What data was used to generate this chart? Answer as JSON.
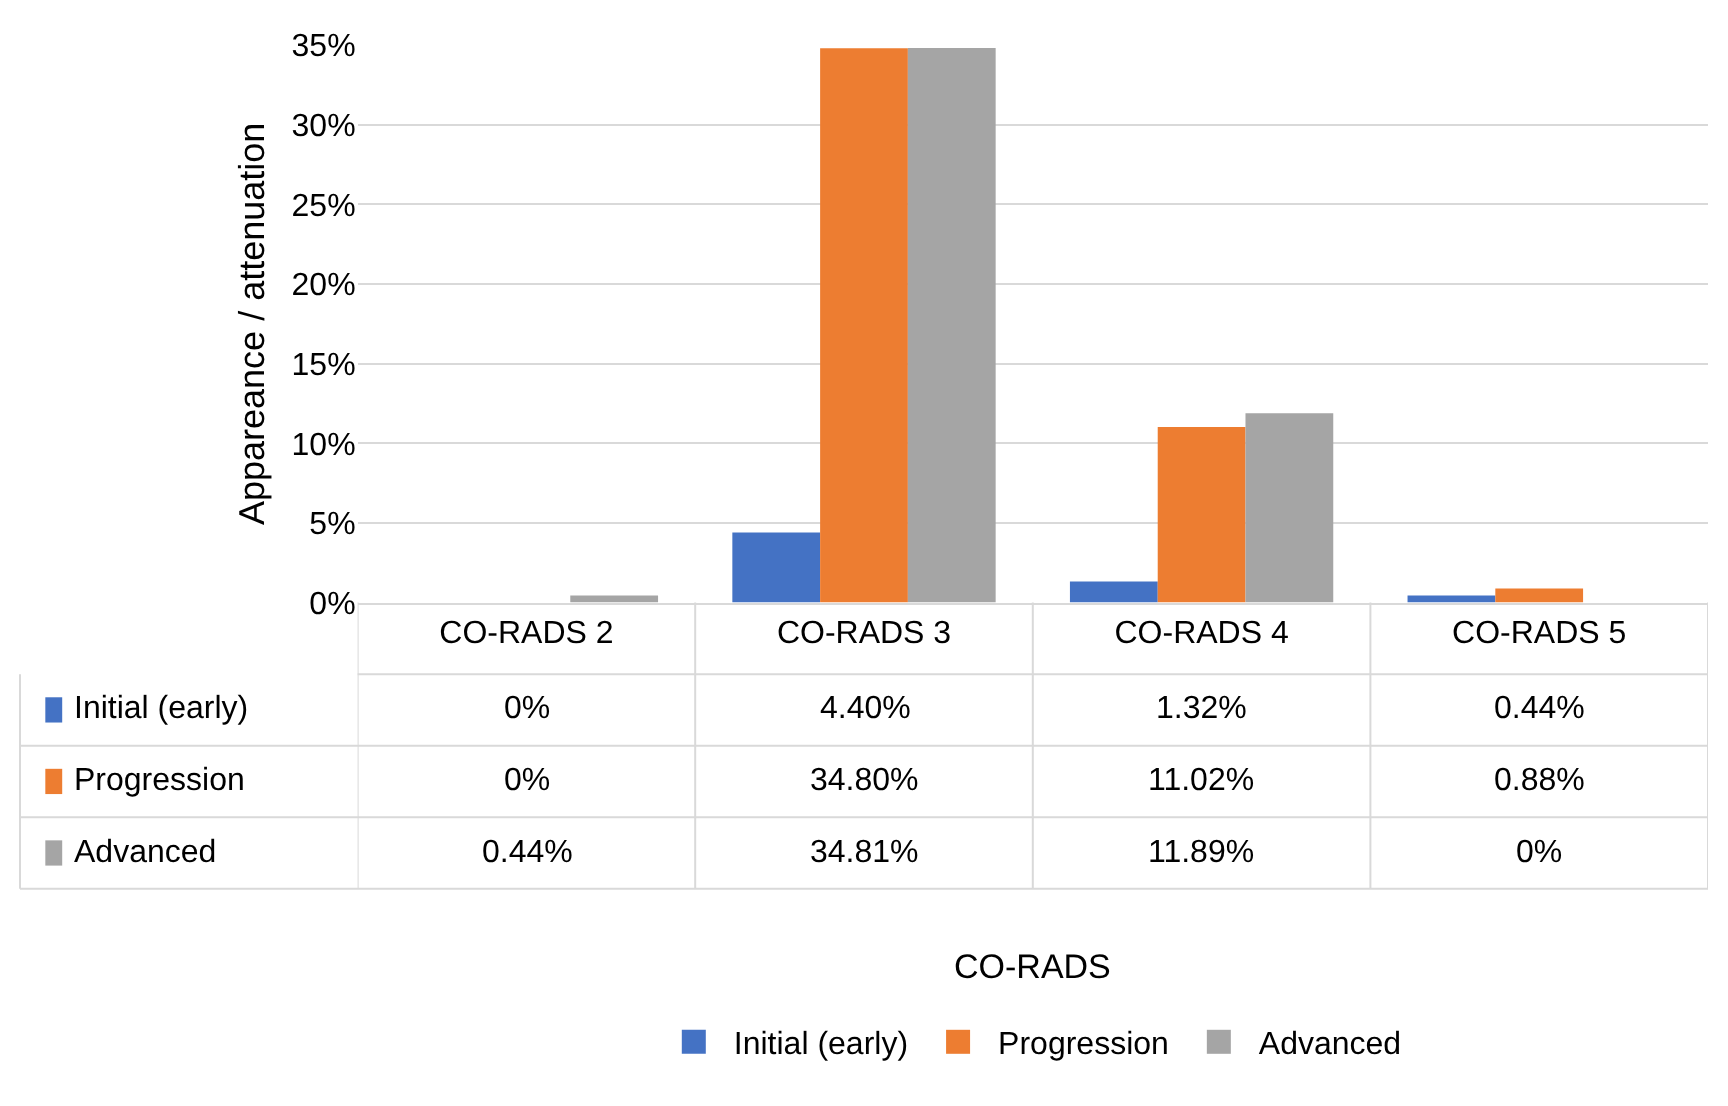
{
  "chart_data": {
    "type": "bar",
    "annotations": [
      "CO-RADS"
    ],
    "ylabel": "Appareance / attenuation",
    "categories": [
      "CO-RADS 2",
      "CO-RADS 3",
      "CO-RADS 4",
      "CO-RADS 5"
    ],
    "series": [
      {
        "name": "Initial (early)",
        "color": "#4472c4",
        "values": [
          0,
          4.4,
          1.32,
          0.44
        ],
        "value_labels": [
          "0%",
          "4.40%",
          "1.32%",
          "0.44%"
        ]
      },
      {
        "name": "Progression",
        "color": "#ed7d31",
        "values": [
          0,
          34.8,
          11.02,
          0.88
        ],
        "value_labels": [
          "0%",
          "34.80%",
          "11.02%",
          "0.88%"
        ]
      },
      {
        "name": "Advanced",
        "color": "#a5a5a5",
        "values": [
          0.44,
          34.81,
          11.89,
          0
        ],
        "value_labels": [
          "0.44%",
          "34.81%",
          "11.89%",
          "0%"
        ]
      }
    ],
    "ylim": [
      0,
      35
    ],
    "yticks": [
      {
        "value": 0,
        "label": "0%"
      },
      {
        "value": 5,
        "label": "5%"
      },
      {
        "value": 10,
        "label": "10%"
      },
      {
        "value": 15,
        "label": "15%"
      },
      {
        "value": 20,
        "label": "20%"
      },
      {
        "value": 25,
        "label": "25%"
      },
      {
        "value": 30,
        "label": "30%"
      },
      {
        "value": 35,
        "label": "35%"
      }
    ],
    "grid": "y",
    "legend": "bottom"
  }
}
